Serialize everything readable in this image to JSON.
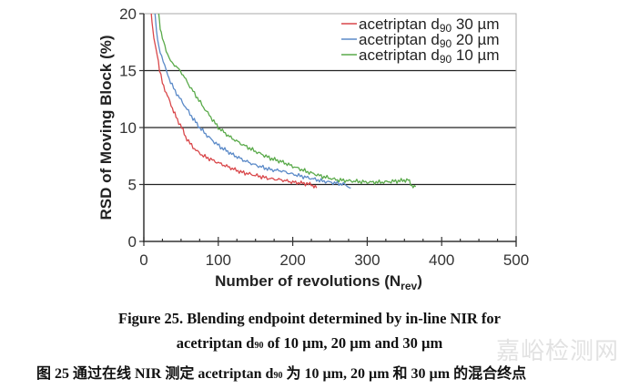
{
  "chart_data": {
    "type": "line",
    "title": "",
    "xlabel": "Number of revolutions (N",
    "xlabel_sub": "rev",
    "xlabel_close": ")",
    "ylabel": "RSD of Moving Block (%)",
    "xlim": [
      0,
      500
    ],
    "ylim": [
      0,
      20
    ],
    "xticks": [
      0,
      100,
      200,
      300,
      400,
      500
    ],
    "xtick_labels": [
      "0",
      "100",
      "200",
      "300",
      "400",
      "500"
    ],
    "x_minor_step": 25,
    "yticks": [
      0,
      5,
      10,
      15,
      20
    ],
    "ytick_labels": [
      "0",
      "5",
      "10",
      "15",
      "20"
    ],
    "grid": "horizontal at 5, 10, 15",
    "legend_position": "top-right",
    "series": [
      {
        "name": "acetriptan d90 30 µm",
        "legend_prefix": "acetriptan d",
        "legend_sub": "90",
        "legend_suffix": " 30 µm",
        "color": "#d9474a",
        "x": [
          10,
          12,
          15,
          18,
          21,
          25,
          30,
          35,
          40,
          45,
          51,
          56,
          62,
          70,
          80,
          90,
          100,
          115,
          130,
          150,
          170,
          185,
          200,
          215,
          225,
          232
        ],
        "y": [
          20,
          18.5,
          17.3,
          16.5,
          15.0,
          14.0,
          13.0,
          12.3,
          11.4,
          10.7,
          10.0,
          9.2,
          8.6,
          8.0,
          7.5,
          7.2,
          6.9,
          6.5,
          6.1,
          5.8,
          5.5,
          5.4,
          5.2,
          5.1,
          5.0,
          4.7
        ]
      },
      {
        "name": "acetriptan d90 20 µm",
        "legend_prefix": "acetriptan d",
        "legend_sub": "90",
        "legend_suffix": " 20 µm",
        "color": "#5b8ac8",
        "x": [
          15,
          17,
          20,
          24,
          30,
          36,
          42,
          50,
          58,
          66,
          75,
          85,
          95,
          105,
          120,
          135,
          150,
          170,
          185,
          200,
          220,
          240,
          260,
          270,
          278
        ],
        "y": [
          20,
          18.5,
          17.0,
          16.3,
          15.0,
          14.0,
          13.2,
          12.4,
          11.6,
          10.8,
          10.0,
          9.3,
          8.7,
          8.2,
          7.6,
          7.1,
          6.7,
          6.3,
          6.2,
          5.9,
          5.6,
          5.3,
          5.1,
          5.0,
          4.7
        ]
      },
      {
        "name": "acetriptan d90 10 µm",
        "legend_prefix": "acetriptan d",
        "legend_sub": "90",
        "legend_suffix": " 10 µm",
        "color": "#5aaa4a",
        "x": [
          20,
          22,
          25,
          30,
          36,
          43,
          51,
          60,
          70,
          80,
          90,
          100,
          115,
          130,
          150,
          170,
          185,
          200,
          220,
          240,
          260,
          280,
          300,
          320,
          340,
          355,
          360,
          365
        ],
        "y": [
          20,
          18.8,
          17.8,
          16.8,
          15.8,
          15.4,
          14.8,
          13.8,
          12.8,
          11.8,
          10.9,
          10.0,
          9.2,
          8.6,
          7.9,
          7.3,
          7.0,
          6.6,
          6.1,
          5.7,
          5.4,
          5.3,
          5.2,
          5.2,
          5.3,
          5.4,
          4.9,
          4.8
        ]
      }
    ]
  },
  "caption": {
    "line1": "Figure 25. Blending endpoint determined by in-line NIR for",
    "line2_prefix": "acetriptan d",
    "line2_sub": "90",
    "line2_suffix": " of 10 µm, 20 µm and 30 µm",
    "line3_prefix": "图 25    通过在线 NIR 测定 acetriptan d",
    "line3_sub": "90",
    "line3_suffix": " 为 10 µm, 20 µm 和 30 µm 的混合终点"
  },
  "watermark": "嘉峪检测网"
}
